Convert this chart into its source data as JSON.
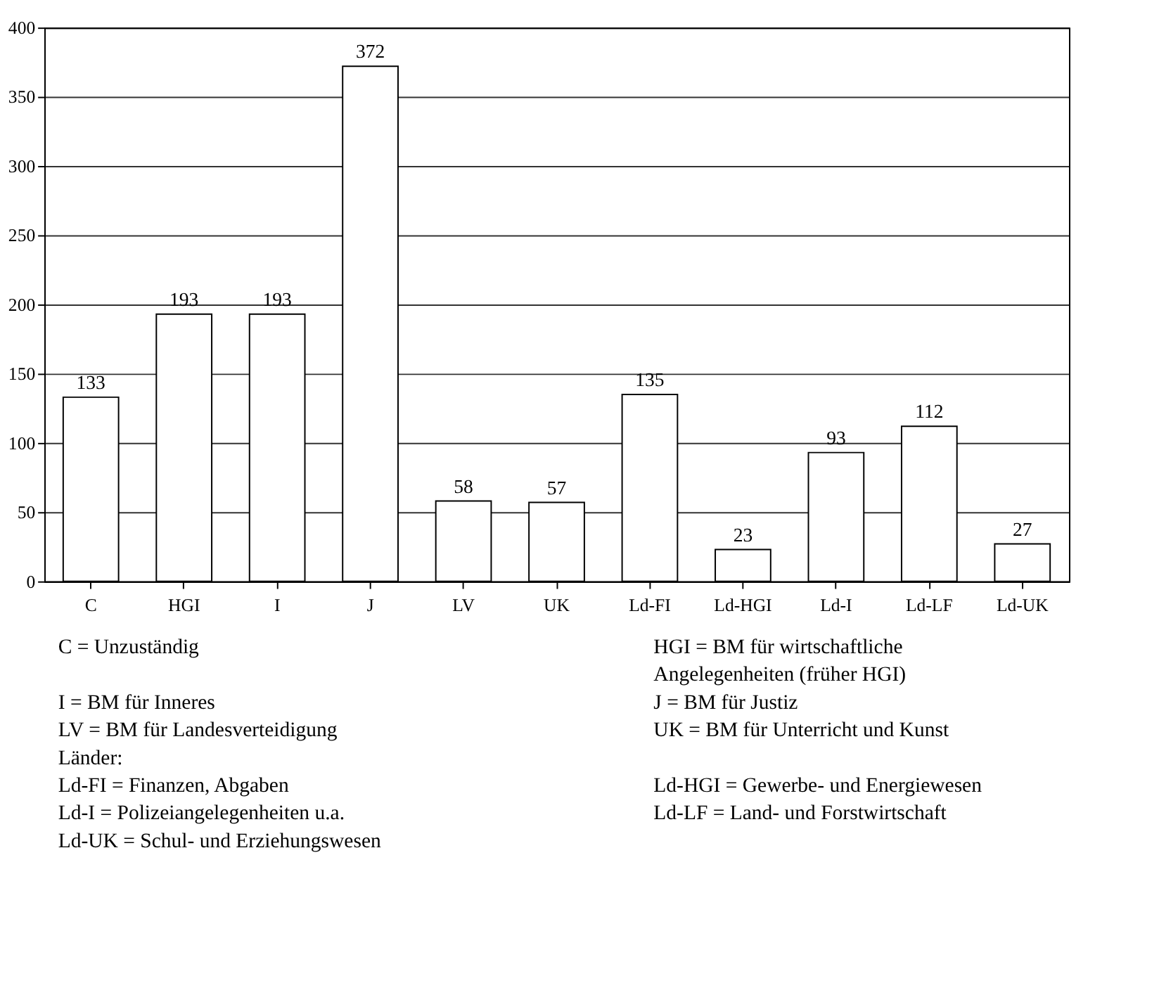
{
  "chart_data": {
    "type": "bar",
    "categories": [
      "C",
      "HGI",
      "I",
      "J",
      "LV",
      "UK",
      "Ld-FI",
      "Ld-HGI",
      "Ld-I",
      "Ld-LF",
      "Ld-UK"
    ],
    "values": [
      133,
      193,
      193,
      372,
      58,
      57,
      135,
      23,
      93,
      112,
      27
    ],
    "color": "#ffffff",
    "ylim": [
      0,
      400
    ],
    "yticks": [
      0,
      50,
      100,
      150,
      200,
      250,
      300,
      350,
      400
    ],
    "grid": "y",
    "data_labels": true,
    "annotations": [
      "C          = Unzuständig",
      "HGI        = BM für wirtschaftliche\n                   Angelegenheiten (früher HGI)",
      "I            = BM für Inneres",
      "J            = BM für Justiz",
      "LV         = BM für Landesverteidigung",
      "UK        = BM für Unterricht und Kunst",
      "Länder:",
      "Ld-FI     = Finanzen, Abgaben",
      "Ld-HGI  = Gewerbe- und Energiewesen",
      "Ld-I       = Polizeiangelegenheiten u.a.",
      "Ld-LF     = Land- und Forstwirtschaft",
      "Ld-UK   = Schul- und Erziehungswesen"
    ]
  }
}
